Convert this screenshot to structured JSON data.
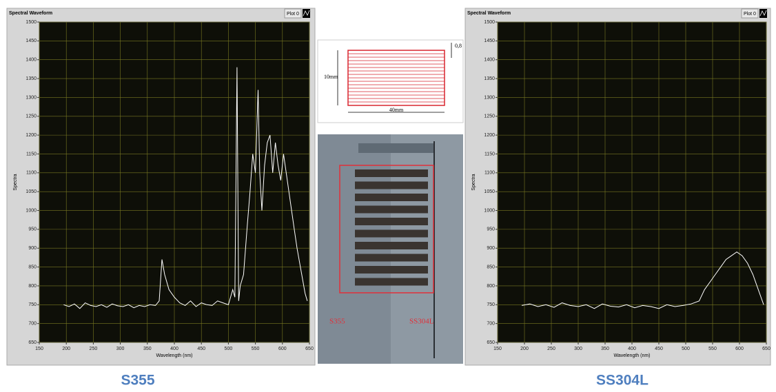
{
  "chart_data": [
    {
      "type": "line",
      "title": "Spectral Waveform",
      "x_label": "Wavelength (nm)",
      "y_label": "Spectra",
      "x": [
        195,
        205,
        215,
        225,
        235,
        245,
        255,
        265,
        275,
        285,
        295,
        305,
        315,
        325,
        335,
        345,
        355,
        365,
        372,
        377,
        382,
        390,
        400,
        410,
        420,
        430,
        440,
        450,
        460,
        470,
        480,
        490,
        500,
        508,
        512,
        516,
        519,
        522,
        528,
        535,
        540,
        545,
        550,
        555,
        558,
        562,
        567,
        572,
        577,
        582,
        587,
        592,
        597,
        602,
        607,
        612,
        617,
        622,
        627,
        632,
        637,
        642,
        646
      ],
      "series": [
        {
          "name": "Plot 0",
          "color": "#ffffff",
          "values": [
            750,
            745,
            752,
            740,
            755,
            748,
            745,
            750,
            743,
            752,
            747,
            745,
            750,
            742,
            748,
            745,
            750,
            748,
            760,
            870,
            830,
            790,
            770,
            755,
            748,
            760,
            745,
            755,
            750,
            748,
            760,
            755,
            750,
            790,
            770,
            1380,
            760,
            800,
            830,
            960,
            1050,
            1150,
            1100,
            1320,
            1100,
            1000,
            1120,
            1180,
            1200,
            1100,
            1180,
            1120,
            1080,
            1150,
            1100,
            1050,
            1000,
            950,
            900,
            860,
            820,
            780,
            760
          ]
        }
      ],
      "xlim": [
        150,
        650
      ],
      "xticks": [
        150,
        200,
        250,
        300,
        350,
        400,
        450,
        500,
        550,
        600,
        650
      ],
      "ylim": [
        650,
        1500
      ],
      "yticks": [
        650,
        700,
        750,
        800,
        850,
        900,
        950,
        1000,
        1050,
        1100,
        1150,
        1200,
        1250,
        1300,
        1350,
        1400,
        1450,
        1500
      ],
      "grid": true
    },
    {
      "type": "line",
      "title": "Spectral Waveform",
      "x_label": "Wavelength (nm)",
      "y_label": "Spectra",
      "x": [
        195,
        210,
        225,
        240,
        255,
        270,
        285,
        300,
        315,
        330,
        345,
        360,
        375,
        390,
        405,
        420,
        435,
        450,
        465,
        480,
        495,
        510,
        525,
        535,
        545,
        555,
        565,
        575,
        585,
        595,
        605,
        615,
        625,
        635,
        645
      ],
      "series": [
        {
          "name": "Plot 0",
          "color": "#ffffff",
          "values": [
            748,
            752,
            745,
            750,
            743,
            755,
            748,
            745,
            750,
            740,
            752,
            746,
            744,
            750,
            742,
            748,
            745,
            740,
            750,
            745,
            748,
            752,
            760,
            790,
            810,
            830,
            850,
            870,
            880,
            890,
            880,
            860,
            830,
            790,
            750
          ]
        }
      ],
      "xlim": [
        150,
        650
      ],
      "xticks": [
        150,
        200,
        250,
        300,
        350,
        400,
        450,
        500,
        550,
        600,
        650
      ],
      "ylim": [
        650,
        1500
      ],
      "yticks": [
        650,
        700,
        750,
        800,
        850,
        900,
        950,
        1000,
        1050,
        1100,
        1150,
        1200,
        1250,
        1300,
        1350,
        1400,
        1450,
        1500
      ],
      "grid": true
    }
  ],
  "diagram": {
    "height_label": "10mm",
    "width_label": "40mm",
    "gap_label": "0,8"
  },
  "photo": {
    "left_label": "S355",
    "right_label": "SS304L"
  },
  "captions": [
    "S355",
    "SS304L"
  ]
}
